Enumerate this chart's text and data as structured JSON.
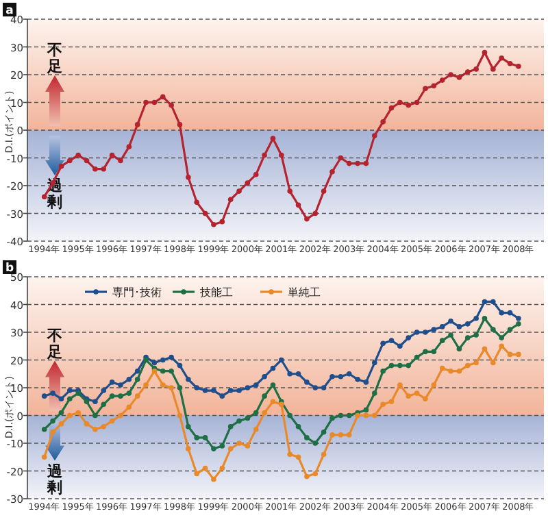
{
  "chart_data": [
    {
      "type": "line",
      "title": "a",
      "ylabel": "D.I.(ポイント)",
      "annotations": [
        "不足",
        "過剰"
      ],
      "x": [
        1994,
        1994.25,
        1994.5,
        1994.75,
        1995,
        1995.25,
        1995.5,
        1995.75,
        1996,
        1996.25,
        1996.5,
        1996.75,
        1997,
        1997.25,
        1997.5,
        1997.75,
        1998,
        1998.25,
        1998.5,
        1998.75,
        1999,
        1999.25,
        1999.5,
        1999.75,
        2000,
        2000.25,
        2000.5,
        2000.75,
        2001,
        2001.25,
        2001.5,
        2001.75,
        2002,
        2002.25,
        2002.5,
        2002.75,
        2003,
        2003.25,
        2003.5,
        2003.75,
        2004,
        2004.25,
        2004.5,
        2004.75,
        2005,
        2005.25,
        2005.5,
        2005.75,
        2006,
        2006.25,
        2006.5,
        2006.75,
        2007,
        2007.25,
        2007.5,
        2007.75,
        2008
      ],
      "series": [
        {
          "color": "#b5232f",
          "values": [
            -24,
            -19,
            -13,
            -11,
            -9,
            -11,
            -14,
            -14,
            -9,
            -11,
            -6,
            2,
            10,
            10,
            12,
            9,
            2,
            -17,
            -26,
            -30,
            -34,
            -33,
            -25,
            -22,
            -19,
            -16,
            -9,
            -3,
            -9,
            -22,
            -27,
            -32,
            -30,
            -22,
            -15,
            -10,
            -12,
            -12,
            -12,
            -2,
            3,
            8,
            10,
            9,
            10,
            15,
            16,
            18,
            20,
            19,
            21,
            22,
            28,
            22,
            26,
            24,
            23
          ]
        }
      ],
      "xlim": [
        1993.5,
        2008.75
      ],
      "xticks": [
        {
          "value": 1994,
          "label": "1994年"
        },
        {
          "value": 1995,
          "label": "1995年"
        },
        {
          "value": 1996,
          "label": "1996年"
        },
        {
          "value": 1997,
          "label": "1997年"
        },
        {
          "value": 1998,
          "label": "1998年"
        },
        {
          "value": 1999,
          "label": "1999年"
        },
        {
          "value": 2000,
          "label": "2000年"
        },
        {
          "value": 2001,
          "label": "2001年"
        },
        {
          "value": 2002,
          "label": "2002年"
        },
        {
          "value": 2003,
          "label": "2003年"
        },
        {
          "value": 2004,
          "label": "2004年"
        },
        {
          "value": 2005,
          "label": "2005年"
        },
        {
          "value": 2006,
          "label": "2006年"
        },
        {
          "value": 2007,
          "label": "2007年"
        },
        {
          "value": 2008,
          "label": "2008年"
        }
      ],
      "ylim": [
        -40,
        40
      ],
      "yticks": [
        -40,
        -30,
        -20,
        -10,
        0,
        10,
        20,
        30,
        40
      ],
      "grid": "y",
      "marker": "circle"
    },
    {
      "type": "line",
      "title": "b",
      "ylabel": "D.I.(ポイント)",
      "annotations": [
        "不足",
        "過剰"
      ],
      "x": [
        1994,
        1994.25,
        1994.5,
        1994.75,
        1995,
        1995.25,
        1995.5,
        1995.75,
        1996,
        1996.25,
        1996.5,
        1996.75,
        1997,
        1997.25,
        1997.5,
        1997.75,
        1998,
        1998.25,
        1998.5,
        1998.75,
        1999,
        1999.25,
        1999.5,
        1999.75,
        2000,
        2000.25,
        2000.5,
        2000.75,
        2001,
        2001.25,
        2001.5,
        2001.75,
        2002,
        2002.25,
        2002.5,
        2002.75,
        2003,
        2003.25,
        2003.5,
        2003.75,
        2004,
        2004.25,
        2004.5,
        2004.75,
        2005,
        2005.25,
        2005.5,
        2005.75,
        2006,
        2006.25,
        2006.5,
        2006.75,
        2007,
        2007.25,
        2007.5,
        2007.75,
        2008
      ],
      "series": [
        {
          "name": "専門･技術",
          "color": "#1f4e8c",
          "values": [
            7,
            8,
            6,
            9,
            9,
            6,
            5,
            9,
            12,
            11,
            13,
            16,
            21,
            19,
            20,
            21,
            18,
            13,
            10,
            9,
            9,
            7,
            9,
            9,
            10,
            11,
            14,
            17,
            20,
            15,
            15,
            12,
            10,
            10,
            14,
            14,
            15,
            13,
            12,
            19,
            26,
            27,
            25,
            28,
            30,
            30,
            31,
            32,
            34,
            32,
            33,
            35,
            41,
            41,
            37,
            37,
            35
          ]
        },
        {
          "name": "技能工",
          "color": "#1e6e46",
          "values": [
            -5,
            -2,
            1,
            6,
            8,
            5,
            0,
            4,
            7,
            7,
            8,
            13,
            20,
            17,
            16,
            16,
            10,
            -4,
            -8,
            -8,
            -12,
            -11,
            -4,
            -2,
            -1,
            1,
            7,
            11,
            5,
            0,
            -4,
            -8,
            -10,
            -6,
            -1,
            0,
            0,
            1,
            2,
            8,
            16,
            18,
            18,
            18,
            21,
            23,
            23,
            27,
            29,
            24,
            28,
            29,
            35,
            31,
            28,
            31,
            33
          ]
        },
        {
          "name": "単純工",
          "color": "#e8892a",
          "values": [
            -15,
            -6,
            -3,
            0,
            1,
            -3,
            -5,
            -4,
            -2,
            0,
            3,
            7,
            11,
            16,
            11,
            10,
            0,
            -12,
            -21,
            -19,
            -23,
            -19,
            -12,
            -10,
            -11,
            -5,
            1,
            5,
            4,
            -14,
            -15,
            -22,
            -21,
            -14,
            -7,
            -7,
            -7,
            0,
            0,
            0,
            4,
            5,
            11,
            7,
            8,
            6,
            11,
            17,
            16,
            16,
            18,
            19,
            24,
            19,
            25,
            22,
            22
          ]
        }
      ],
      "xlim": [
        1993.5,
        2008.75
      ],
      "xticks": [
        {
          "value": 1994,
          "label": "1994年"
        },
        {
          "value": 1995,
          "label": "1995年"
        },
        {
          "value": 1996,
          "label": "1996年"
        },
        {
          "value": 1997,
          "label": "1997年"
        },
        {
          "value": 1998,
          "label": "1998年"
        },
        {
          "value": 1999,
          "label": "1999年"
        },
        {
          "value": 2000,
          "label": "2000年"
        },
        {
          "value": 2001,
          "label": "2001年"
        },
        {
          "value": 2002,
          "label": "2002年"
        },
        {
          "value": 2003,
          "label": "2003年"
        },
        {
          "value": 2004,
          "label": "2004年"
        },
        {
          "value": 2005,
          "label": "2005年"
        },
        {
          "value": 2006,
          "label": "2006年"
        },
        {
          "value": 2007,
          "label": "2007年"
        },
        {
          "value": 2008,
          "label": "2008年"
        }
      ],
      "ylim": [
        -30,
        50
      ],
      "yticks": [
        -30,
        -20,
        -10,
        0,
        10,
        20,
        30,
        40,
        50
      ],
      "grid": "y",
      "marker": "circle",
      "legend": "top left"
    }
  ]
}
